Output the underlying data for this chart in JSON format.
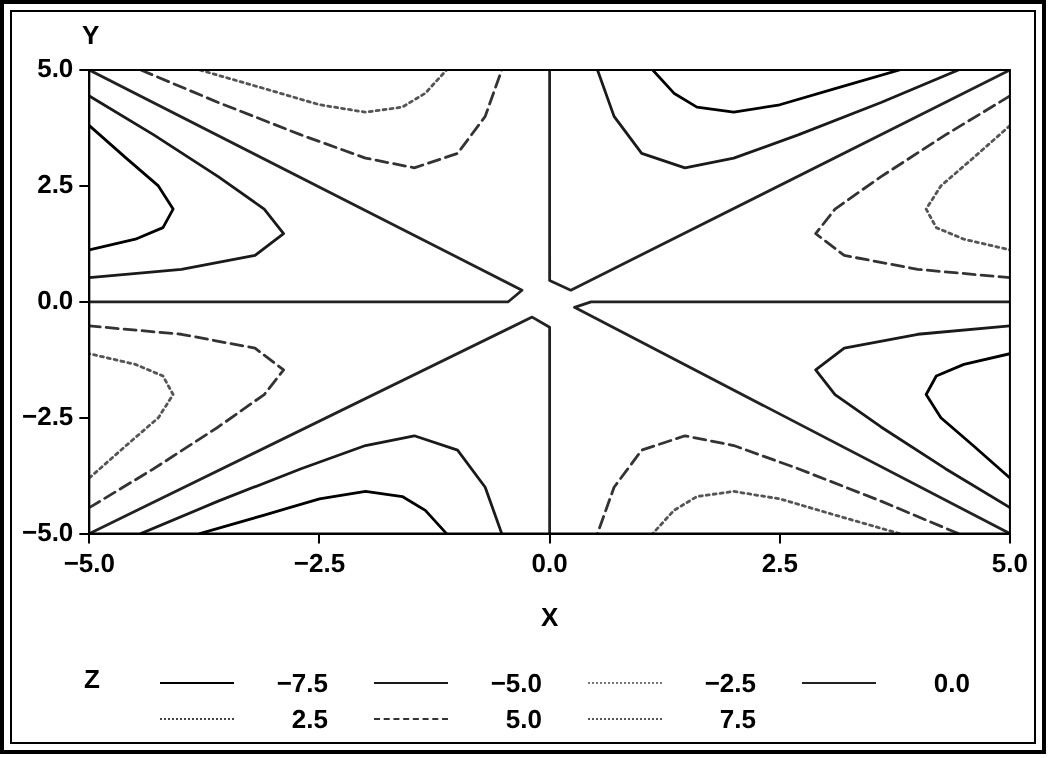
{
  "chart_data": {
    "type": "line",
    "xlabel": "X",
    "ylabel": "Y",
    "legend_title": "Z",
    "legend": "bottom",
    "marker": "none",
    "xlim": [
      -5,
      5
    ],
    "ylim": [
      -5,
      5
    ],
    "xticks": [
      {
        "value": -5,
        "label": "−5.0"
      },
      {
        "value": -2.5,
        "label": "−2.5"
      },
      {
        "value": 0,
        "label": "0.0"
      },
      {
        "value": 2.5,
        "label": "2.5"
      },
      {
        "value": 5,
        "label": "5.0"
      }
    ],
    "yticks": [
      {
        "value": -5,
        "label": "−5.0"
      },
      {
        "value": -2.5,
        "label": "−2.5"
      },
      {
        "value": 0,
        "label": "0.0"
      },
      {
        "value": 2.5,
        "label": "2.5"
      },
      {
        "value": 5,
        "label": "5.0"
      }
    ],
    "series": [
      {
        "name": "−7.5",
        "color": "#000000",
        "line_style": "solid",
        "x": [
          -5,
          -4.6,
          -4.25,
          -4.09,
          -4.2,
          -4.5,
          -5,
          null,
          3.8,
          3.1,
          2.5,
          2,
          1.6,
          1.35,
          1.12,
          null,
          5,
          4.6,
          4.25,
          4.09,
          4.2,
          4.5,
          5,
          null,
          -3.8,
          -3.1,
          -2.5,
          -2,
          -1.6,
          -1.35,
          -1.12
        ],
        "values": [
          3.8,
          3.1,
          2.5,
          2.0,
          1.6,
          1.35,
          1.12,
          null,
          5,
          4.6,
          4.25,
          4.09,
          4.2,
          4.5,
          5,
          null,
          -3.8,
          -3.1,
          -2.5,
          -2,
          -1.6,
          -1.35,
          -1.12,
          null,
          -5,
          -4.6,
          -4.25,
          -4.09,
          -4.2,
          -4.5,
          -5
        ]
      },
      {
        "name": "−5.0",
        "color": "#1a1a1a",
        "line_style": "solid",
        "x": [
          -5,
          -4,
          -3.2,
          -2.89,
          -3.1,
          -3.6,
          -4.3,
          -5,
          null,
          0.52,
          0.7,
          1,
          1.47,
          2,
          2.7,
          3.6,
          4.44,
          null,
          5,
          4,
          3.2,
          2.89,
          3.1,
          3.6,
          4.3,
          5,
          null,
          -0.52,
          -0.7,
          -1,
          -1.47,
          -2,
          -2.7,
          -3.6,
          -4.44
        ],
        "values": [
          0.52,
          0.7,
          1,
          1.47,
          2,
          2.7,
          3.6,
          4.44,
          null,
          5,
          4,
          3.2,
          2.89,
          3.1,
          3.6,
          4.3,
          5,
          null,
          -0.52,
          -0.7,
          -1,
          -1.47,
          -2,
          -2.7,
          -3.6,
          -4.44,
          null,
          -5,
          -4,
          -3.2,
          -2.89,
          -3.1,
          -3.6,
          -4.3,
          -5
        ]
      },
      {
        "name": "−2.5",
        "color": "#777777",
        "line_style": "dotted"
      },
      {
        "name": "0.0",
        "color": "#222222",
        "line_style": "solid",
        "x": [
          -5,
          -0.3,
          -0.45,
          -5,
          null,
          0,
          0,
          0.23,
          5,
          null,
          -5,
          -0.19,
          0,
          0,
          null,
          5,
          0.45,
          0.27,
          5
        ],
        "values": [
          5,
          0.25,
          0,
          0,
          null,
          5,
          0.46,
          0.25,
          5,
          null,
          -5,
          -0.33,
          -0.55,
          -5,
          null,
          0,
          0,
          -0.12,
          -5
        ]
      },
      {
        "name": "2.5",
        "color": "#444444",
        "line_style": "dotted"
      },
      {
        "name": "5.0",
        "color": "#333333",
        "line_style": "dashed",
        "x": [
          -4.44,
          -3.6,
          -2.7,
          -2,
          -1.47,
          -1,
          -0.7,
          -0.52,
          null,
          5,
          4.3,
          3.6,
          3.1,
          2.89,
          3.2,
          4,
          5,
          null,
          4.44,
          3.6,
          2.7,
          2,
          1.47,
          1,
          0.7,
          0.52,
          null,
          -5,
          -4.3,
          -3.6,
          -3.1,
          -2.89,
          -3.2,
          -4,
          -5
        ],
        "values": [
          5,
          4.3,
          3.6,
          3.1,
          2.89,
          3.2,
          4,
          5,
          null,
          4.44,
          3.6,
          2.7,
          2,
          1.47,
          1,
          0.7,
          0.52,
          null,
          -5,
          -4.3,
          -3.6,
          -3.1,
          -2.89,
          -3.2,
          -4,
          -5,
          null,
          -4.44,
          -3.6,
          -2.7,
          -2,
          -1.47,
          -1,
          -0.7,
          -0.52
        ]
      },
      {
        "name": "7.5",
        "color": "#555555",
        "line_style": "dotted",
        "x": [
          -3.8,
          -3.1,
          -2.5,
          -2,
          -1.6,
          -1.35,
          -1.12,
          null,
          5,
          4.6,
          4.25,
          4.09,
          4.2,
          4.5,
          5,
          null,
          3.8,
          3.1,
          2.5,
          2,
          1.6,
          1.35,
          1.12,
          null,
          -5,
          -4.6,
          -4.25,
          -4.09,
          -4.2,
          -4.5,
          -5
        ],
        "values": [
          5,
          4.6,
          4.25,
          4.09,
          4.2,
          4.5,
          5,
          null,
          3.8,
          3.1,
          2.5,
          2,
          1.6,
          1.35,
          1.12,
          null,
          -5,
          -4.6,
          -4.25,
          -4.09,
          -4.2,
          -4.5,
          -5,
          null,
          -3.8,
          -3.1,
          -2.5,
          -2,
          -1.6,
          -1.35,
          -1.12
        ]
      }
    ]
  }
}
